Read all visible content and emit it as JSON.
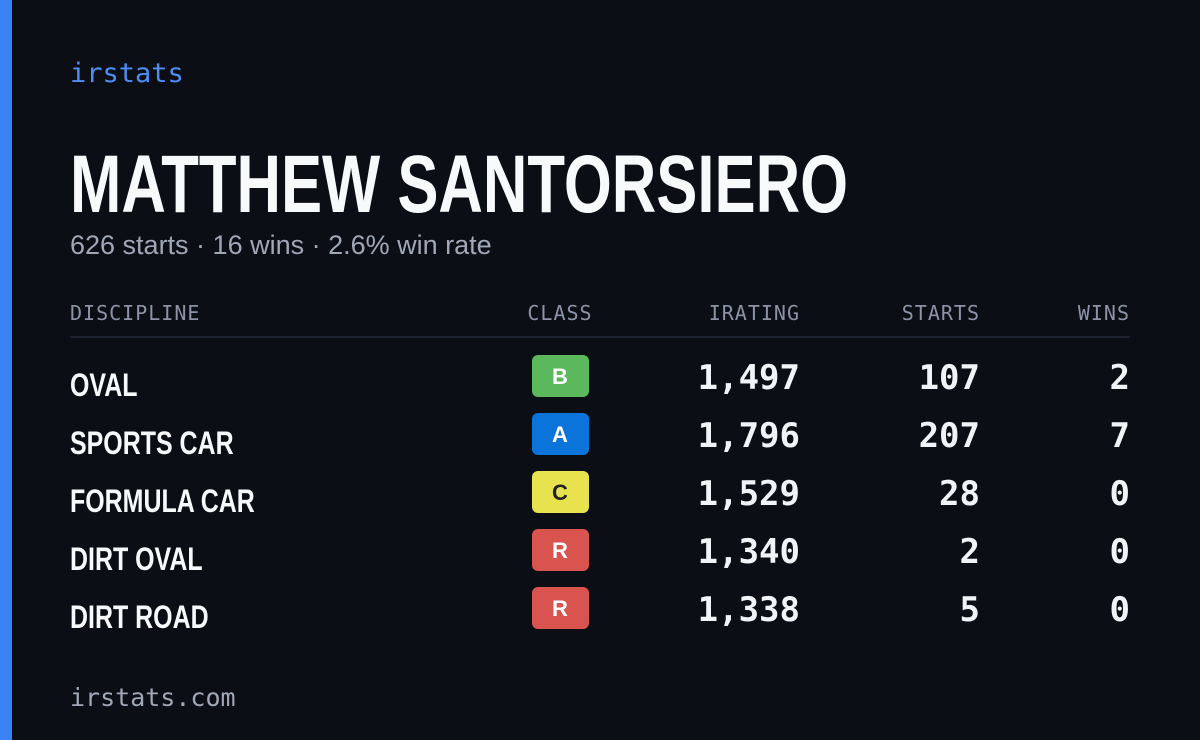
{
  "brand": "irstats",
  "driver": {
    "name": "MATTHEW SANTORSIERO",
    "summary": "626 starts · 16 wins · 2.6% win rate"
  },
  "table": {
    "headers": [
      "DISCIPLINE",
      "CLASS",
      "IRATING",
      "STARTS",
      "WINS"
    ],
    "rows": [
      [
        "OVAL",
        "B",
        "1,497",
        "107",
        "2"
      ],
      [
        "SPORTS CAR",
        "A",
        "1,796",
        "207",
        "7"
      ],
      [
        "FORMULA CAR",
        "C",
        "1,529",
        "28",
        "0"
      ],
      [
        "DIRT OVAL",
        "R",
        "1,340",
        "2",
        "0"
      ],
      [
        "DIRT ROAD",
        "R",
        "1,338",
        "5",
        "0"
      ]
    ]
  },
  "footer": "irstats.com"
}
